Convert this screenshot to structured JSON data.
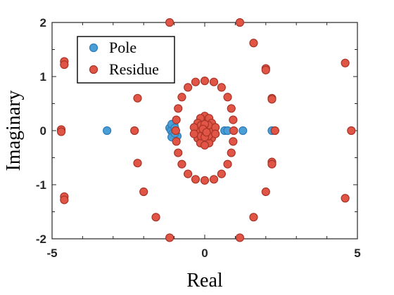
{
  "chart_data": {
    "type": "scatter",
    "xlabel": "Real",
    "ylabel": "Imaginary",
    "xlim": [
      -5,
      5
    ],
    "ylim": [
      -2,
      2
    ],
    "xticks": [
      -5,
      0,
      5
    ],
    "yticks": [
      -2,
      -1,
      0,
      1,
      2
    ],
    "grid": false,
    "legend_position": "top-left",
    "series": [
      {
        "name": "Pole",
        "color": "#4a9fd8",
        "edge": "#2f7bb5",
        "points": [
          [
            -3.2,
            0
          ],
          [
            -1.15,
            0.05
          ],
          [
            -1.1,
            0
          ],
          [
            -1.05,
            -0.05
          ],
          [
            -1.0,
            0.1
          ],
          [
            -0.95,
            0
          ],
          [
            -0.9,
            -0.1
          ],
          [
            -1.08,
            0.12
          ],
          [
            -1.08,
            -0.12
          ],
          [
            -0.98,
            0.05
          ],
          [
            -0.98,
            -0.05
          ],
          [
            0.65,
            0
          ],
          [
            0.75,
            0
          ],
          [
            1.25,
            0
          ],
          [
            2.2,
            0
          ]
        ]
      },
      {
        "name": "Residue",
        "color": "#e05545",
        "edge": "#a83428",
        "points": [
          [
            -1.15,
            2.0
          ],
          [
            1.15,
            2.0
          ],
          [
            1.6,
            1.62
          ],
          [
            2.0,
            1.15
          ],
          [
            2.0,
            1.12
          ],
          [
            2.2,
            0.6
          ],
          [
            2.2,
            0.58
          ],
          [
            -2.2,
            0.6
          ],
          [
            -4.6,
            1.28
          ],
          [
            -4.6,
            1.22
          ],
          [
            4.6,
            1.25
          ],
          [
            -4.7,
            0.02
          ],
          [
            -4.7,
            -0.02
          ],
          [
            -2.3,
            0
          ],
          [
            2.3,
            0
          ],
          [
            4.8,
            0
          ],
          [
            -4.6,
            -1.22
          ],
          [
            -4.6,
            -1.28
          ],
          [
            4.6,
            -1.25
          ],
          [
            -2.2,
            -0.6
          ],
          [
            2.2,
            -0.58
          ],
          [
            2.2,
            -0.62
          ],
          [
            -2.0,
            -1.13
          ],
          [
            2.0,
            -1.13
          ],
          [
            -1.6,
            -1.6
          ],
          [
            1.6,
            -1.6
          ],
          [
            -1.15,
            -1.98
          ],
          [
            1.15,
            -1.98
          ],
          [
            -0.3,
            0.9
          ],
          [
            0.0,
            0.92
          ],
          [
            0.3,
            0.9
          ],
          [
            -0.55,
            0.8
          ],
          [
            0.55,
            0.8
          ],
          [
            -0.75,
            0.62
          ],
          [
            0.75,
            0.62
          ],
          [
            -0.87,
            0.41
          ],
          [
            0.87,
            0.41
          ],
          [
            -0.93,
            0.2
          ],
          [
            0.93,
            0.2
          ],
          [
            -0.95,
            0.0
          ],
          [
            0.95,
            0.0
          ],
          [
            -0.93,
            -0.2
          ],
          [
            0.93,
            -0.2
          ],
          [
            -0.87,
            -0.41
          ],
          [
            0.87,
            -0.41
          ],
          [
            -0.75,
            -0.62
          ],
          [
            0.75,
            -0.62
          ],
          [
            -0.55,
            -0.8
          ],
          [
            0.55,
            -0.8
          ],
          [
            -0.3,
            -0.9
          ],
          [
            0.0,
            -0.92
          ],
          [
            0.3,
            -0.9
          ],
          [
            0.0,
            0.27
          ],
          [
            -0.14,
            0.23
          ],
          [
            0.14,
            0.23
          ],
          [
            -0.23,
            0.14
          ],
          [
            0.23,
            0.14
          ],
          [
            -0.27,
            0.0
          ],
          [
            0.27,
            0.0
          ],
          [
            -0.23,
            -0.14
          ],
          [
            0.23,
            -0.14
          ],
          [
            -0.14,
            -0.23
          ],
          [
            0.14,
            -0.23
          ],
          [
            0.0,
            -0.27
          ],
          [
            -0.12,
            0.1
          ],
          [
            0.12,
            0.1
          ],
          [
            -0.12,
            -0.1
          ],
          [
            0.12,
            -0.1
          ],
          [
            0.0,
            0.12
          ],
          [
            0.0,
            -0.12
          ],
          [
            -0.35,
            0.06
          ],
          [
            0.35,
            0.06
          ],
          [
            -0.35,
            -0.06
          ],
          [
            0.35,
            -0.06
          ],
          [
            0.0,
            0.0
          ],
          [
            -0.06,
            0.03
          ],
          [
            0.06,
            -0.03
          ]
        ]
      }
    ]
  }
}
